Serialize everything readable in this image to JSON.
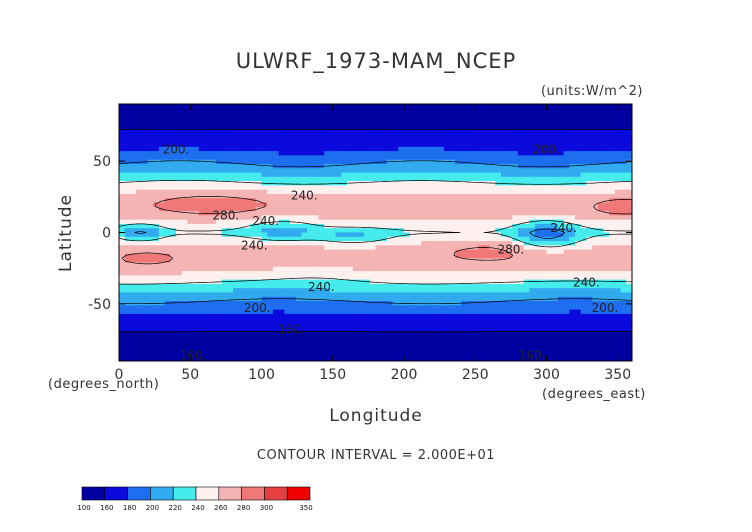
{
  "chart_data": {
    "type": "heatmap",
    "title": "ULWRF_1973-MAM_NCEP",
    "units": "(units:W/m^2)",
    "xlabel": "Longitude",
    "ylabel": "Latitude",
    "x_unit_note": "(degrees_east)",
    "y_unit_note": "(degrees_north)",
    "xlim": [
      0,
      360
    ],
    "ylim": [
      -90,
      90
    ],
    "x_ticks": [
      "0",
      "50",
      "100",
      "150",
      "200",
      "250",
      "300",
      "350"
    ],
    "x_tick_values": [
      0,
      50,
      100,
      150,
      200,
      250,
      300,
      350
    ],
    "y_ticks": [
      "50",
      "0",
      "-50"
    ],
    "y_tick_values": [
      50,
      0,
      -50
    ],
    "contour_interval_text": "CONTOUR INTERVAL = 2.000E+01",
    "contour_labels": [
      {
        "text": "200.",
        "lon": 40,
        "lat": 58
      },
      {
        "text": "200.",
        "lon": 300,
        "lat": 58
      },
      {
        "text": "240.",
        "lon": 130,
        "lat": 26
      },
      {
        "text": "280.",
        "lon": 75,
        "lat": 12
      },
      {
        "text": "240.",
        "lon": 103,
        "lat": 8
      },
      {
        "text": "240.",
        "lon": 95,
        "lat": -9
      },
      {
        "text": "280.",
        "lon": 275,
        "lat": -12
      },
      {
        "text": "240.",
        "lon": 312,
        "lat": 3
      },
      {
        "text": "240.",
        "lon": 142,
        "lat": -38
      },
      {
        "text": "240.",
        "lon": 328,
        "lat": -35
      },
      {
        "text": "200.",
        "lon": 97,
        "lat": -53
      },
      {
        "text": "200.",
        "lon": 341,
        "lat": -53
      },
      {
        "text": "160.",
        "lon": 121,
        "lat": -68
      },
      {
        "text": "160.",
        "lon": 52,
        "lat": -86
      },
      {
        "text": "160.",
        "lon": 290,
        "lat": -86
      }
    ],
    "colorbar": {
      "levels": [
        "100",
        "160",
        "180",
        "200",
        "220",
        "240",
        "260",
        "280",
        "300",
        "350"
      ],
      "colors": [
        "#0000a0",
        "#0a0adc",
        "#1e6ef0",
        "#32aaf0",
        "#46ebeb",
        "#fff0f0",
        "#f5b4b4",
        "#f07878",
        "#e64141",
        "#f00000"
      ]
    }
  }
}
